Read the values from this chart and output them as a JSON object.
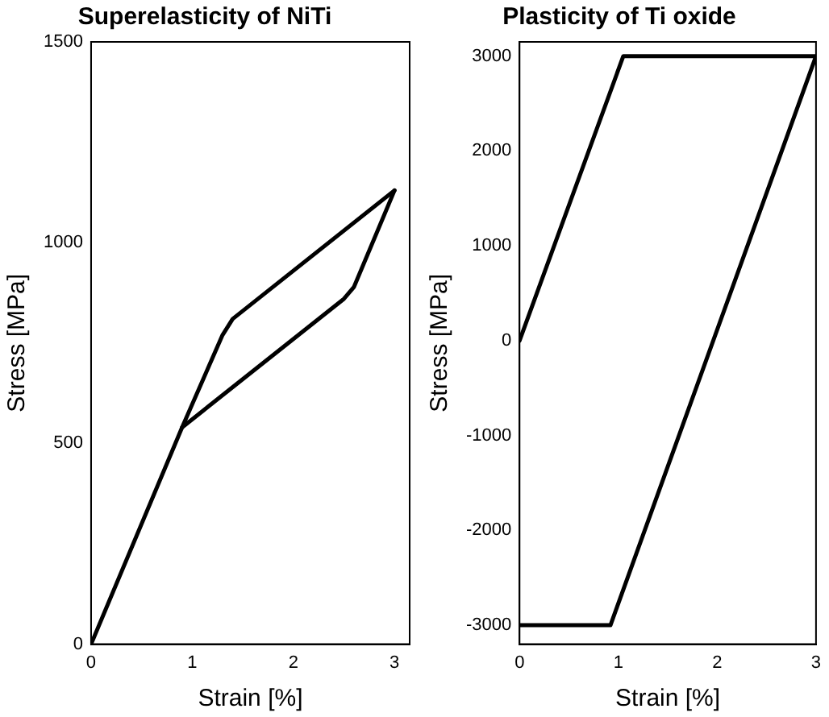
{
  "chart_data": [
    {
      "type": "line",
      "title": "Superelasticity of NiTi",
      "xlabel": "Strain [%]",
      "ylabel": "Stress [MPa]",
      "xlim": [
        0,
        3.15
      ],
      "ylim": [
        0,
        1500
      ],
      "xticks": [
        0,
        1,
        2,
        3
      ],
      "yticks": [
        0,
        500,
        1000,
        1500
      ],
      "grid": false,
      "legend": false,
      "marker": "none",
      "line_style": "solid",
      "series": [
        {
          "color": "#000000",
          "x": [
            0,
            0.9,
            1.3,
            1.4,
            3
          ],
          "values": [
            0,
            540,
            770,
            810,
            1130
          ]
        },
        {
          "color": "#000000",
          "x": [
            0.9,
            2.5,
            2.6,
            3
          ],
          "values": [
            540,
            860,
            890,
            1130
          ]
        }
      ]
    },
    {
      "type": "line",
      "title": "Plasticity of Ti oxide",
      "xlabel": "Strain [%]",
      "ylabel": "Stress [MPa]",
      "xlim": [
        0,
        3
      ],
      "ylim": [
        -3200,
        3150
      ],
      "xticks": [
        0,
        1,
        2,
        3
      ],
      "yticks": [
        -3000,
        -2000,
        -1000,
        0,
        1000,
        2000,
        3000
      ],
      "grid": false,
      "legend": false,
      "marker": "none",
      "line_style": "solid",
      "series": [
        {
          "color": "#000000",
          "x": [
            0,
            1.05,
            3,
            0.92,
            0
          ],
          "values": [
            0,
            3000,
            3000,
            -3000,
            -3000
          ]
        }
      ]
    }
  ]
}
